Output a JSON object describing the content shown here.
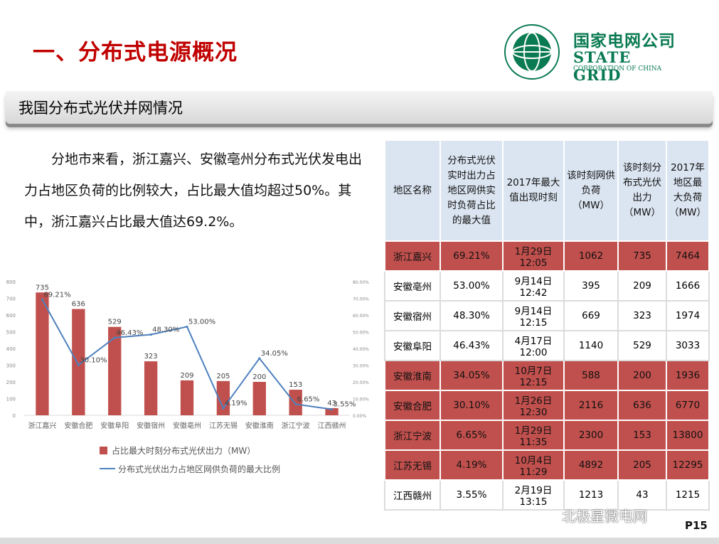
{
  "header": {
    "title": "一、分布式电源概况"
  },
  "logo": {
    "cn": "国家电网公司",
    "en": "STATE GRID",
    "en_sub": "CORPORATION OF CHINA"
  },
  "banner": {
    "text": "我国分布式光伏并网情况"
  },
  "paragraph": "分地市来看，浙江嘉兴、安徽亳州分布式光伏发电出力占地区负荷的比例较大，占比最大值均超过50%。其中，浙江嘉兴占比最大值达69.2%。",
  "chart_data": {
    "type": "bar",
    "categories": [
      "浙江嘉兴",
      "安徽合肥",
      "安徽阜阳",
      "安徽宿州",
      "安徽亳州",
      "江苏无锡",
      "安徽淮南",
      "浙江宁波",
      "江西赣州"
    ],
    "series": [
      {
        "name": "占比最大时刻分布式光伏出力（MW）",
        "type": "bar",
        "axis": "left",
        "values": [
          735,
          636,
          529,
          323,
          209,
          205,
          200,
          153,
          43
        ],
        "labels": [
          "735",
          "636",
          "529",
          "323",
          "209",
          "205",
          "200",
          "153",
          "43"
        ]
      },
      {
        "name": "分布式光伏出力占地区网供负荷的最大比例",
        "type": "line",
        "axis": "right",
        "values": [
          69.21,
          30.1,
          46.43,
          48.3,
          53.0,
          4.19,
          34.05,
          6.65,
          3.55
        ],
        "labels": [
          "69.21%",
          "30.10%",
          "46.43%",
          "48.30%",
          "53.00%",
          "4.19%",
          "34.05%",
          "6.65%",
          "3.55%"
        ]
      }
    ],
    "ylim": [
      0,
      800
    ],
    "y_ticks": [
      "0",
      "100",
      "200",
      "300",
      "400",
      "500",
      "600",
      "700",
      "800"
    ],
    "y2lim": [
      0,
      80
    ],
    "y2_ticks": [
      "0.00%",
      "10.00%",
      "20.00%",
      "30.00%",
      "40.00%",
      "50.00%",
      "60.00%",
      "70.00%",
      "80.00%"
    ],
    "grid": false,
    "legend_position": "bottom",
    "colors": {
      "bar": "#c0504d",
      "line": "#4f81bd"
    }
  },
  "table": {
    "headers": [
      "地区名称",
      "分布式光伏实时出力占地区网供实时负荷占比的最大值",
      "2017年最大值出现时刻",
      "该时刻网供负荷（MW）",
      "该时刻分布式光伏出力（MW）",
      "2017年地区最大负荷（MW）"
    ],
    "rows": [
      {
        "region": "浙江嘉兴",
        "ratio": "69.21%",
        "time": "1月29日 12:05",
        "load": "1062",
        "pv": "735",
        "max": "7464",
        "highlight": true
      },
      {
        "region": "安徽亳州",
        "ratio": "53.00%",
        "time": "9月14日 12:42",
        "load": "395",
        "pv": "209",
        "max": "1666",
        "highlight": false
      },
      {
        "region": "安徽宿州",
        "ratio": "48.30%",
        "time": "9月14日 12:15",
        "load": "669",
        "pv": "323",
        "max": "1974",
        "highlight": false
      },
      {
        "region": "安徽阜阳",
        "ratio": "46.43%",
        "time": "4月17日 12:00",
        "load": "1140",
        "pv": "529",
        "max": "3033",
        "highlight": false
      },
      {
        "region": "安徽淮南",
        "ratio": "34.05%",
        "time": "10月7日 12:15",
        "load": "588",
        "pv": "200",
        "max": "1936",
        "highlight": true
      },
      {
        "region": "安徽合肥",
        "ratio": "30.10%",
        "time": "1月26日 12:30",
        "load": "2116",
        "pv": "636",
        "max": "6770",
        "highlight": true
      },
      {
        "region": "浙江宁波",
        "ratio": "6.65%",
        "time": "1月29日 11:35",
        "load": "2300",
        "pv": "153",
        "max": "13800",
        "highlight": true
      },
      {
        "region": "江苏无锡",
        "ratio": "4.19%",
        "time": "10月4日 11:29",
        "load": "4892",
        "pv": "205",
        "max": "12295",
        "highlight": true
      },
      {
        "region": "江西赣州",
        "ratio": "3.55%",
        "time": "2月19日 13:15",
        "load": "1213",
        "pv": "43",
        "max": "1215",
        "highlight": false
      }
    ]
  },
  "footer": {
    "page": "P15",
    "watermark": "北极星微电网"
  }
}
